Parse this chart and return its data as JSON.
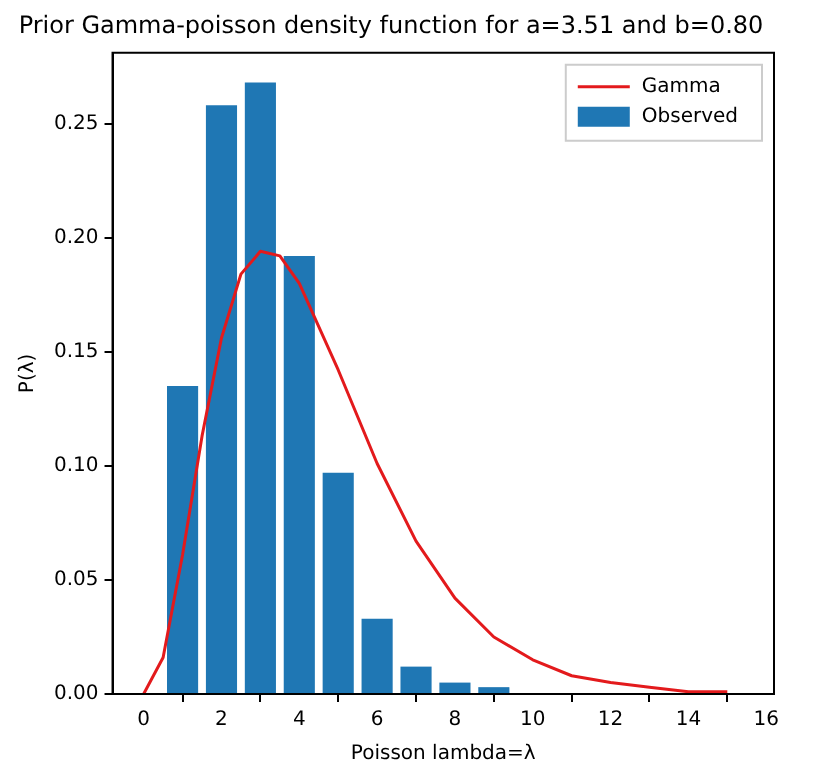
{
  "chart_data": {
    "type": "bar",
    "title": "Prior Gamma-poisson density function for a=3.51 and b=0.80",
    "xlabel": "Poisson lambda=λ",
    "ylabel": "P(λ)",
    "series": [
      {
        "name": "Gamma",
        "type": "line",
        "color": "#e31a1c",
        "x": [
          0,
          0.5,
          1,
          1.5,
          2,
          2.5,
          3,
          3.5,
          4,
          5,
          6,
          7,
          8,
          9,
          10,
          11,
          12,
          13,
          14,
          15
        ],
        "values": [
          0,
          0.016,
          0.061,
          0.113,
          0.156,
          0.184,
          0.194,
          0.192,
          0.18,
          0.142,
          0.101,
          0.067,
          0.042,
          0.025,
          0.015,
          0.008,
          0.005,
          0.003,
          0.001,
          0.001
        ]
      },
      {
        "name": "Observed",
        "color": "#1f77b4",
        "x": [
          1,
          2,
          3,
          4,
          5,
          6,
          7,
          8,
          9
        ],
        "values": [
          0.135,
          0.258,
          0.268,
          0.192,
          0.097,
          0.033,
          0.012,
          0.005,
          0.003
        ]
      }
    ],
    "xlim": [
      -0.8,
      16.2
    ],
    "xticks": [
      0,
      2,
      4,
      6,
      8,
      10,
      12,
      14,
      16
    ],
    "ylim": [
      0,
      0.281
    ],
    "yticks": [
      {
        "value": 0,
        "label": "0.00"
      },
      {
        "value": 0.05,
        "label": "0.05"
      },
      {
        "value": 0.1,
        "label": "0.10"
      },
      {
        "value": 0.15,
        "label": "0.15"
      },
      {
        "value": 0.2,
        "label": "0.20"
      },
      {
        "value": 0.25,
        "label": "0.25"
      }
    ],
    "grid": false,
    "legend": "top right",
    "marker": "none",
    "line_style": "solid"
  }
}
